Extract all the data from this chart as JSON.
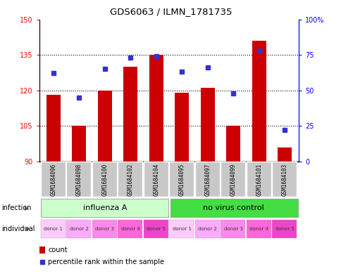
{
  "title": "GDS6063 / ILMN_1781735",
  "samples": [
    "GSM1684096",
    "GSM1684098",
    "GSM1684100",
    "GSM1684102",
    "GSM1684104",
    "GSM1684095",
    "GSM1684097",
    "GSM1684099",
    "GSM1684101",
    "GSM1684103"
  ],
  "counts": [
    118,
    105,
    120,
    130,
    135,
    119,
    121,
    105,
    141,
    96
  ],
  "percentiles": [
    62,
    45,
    65,
    73,
    74,
    63,
    66,
    48,
    78,
    22
  ],
  "ylim_left": [
    90,
    150
  ],
  "ylim_right": [
    0,
    100
  ],
  "yticks_left": [
    90,
    105,
    120,
    135,
    150
  ],
  "yticks_right": [
    0,
    25,
    50,
    75,
    100
  ],
  "bar_color": "#cc0000",
  "dot_color": "#3333cc",
  "infection_labels": [
    "influenza A",
    "no virus control"
  ],
  "infection_color_light": "#ccffcc",
  "infection_color_dark": "#44dd44",
  "individual_colors": [
    "#ffccff",
    "#ffaaff",
    "#ff88ee",
    "#ff66dd",
    "#ee44cc",
    "#ffccff",
    "#ffaaff",
    "#ff88ee",
    "#ff66dd",
    "#ee44cc"
  ],
  "individual_labels": [
    "donor 1",
    "donor 2",
    "donor 3",
    "donor 4",
    "donor 5",
    "donor 1",
    "donor 2",
    "donor 3",
    "donor 4",
    "donor 5"
  ],
  "sample_bg": "#c8c8c8",
  "legend_count_color": "#cc0000",
  "legend_dot_color": "#3333cc"
}
